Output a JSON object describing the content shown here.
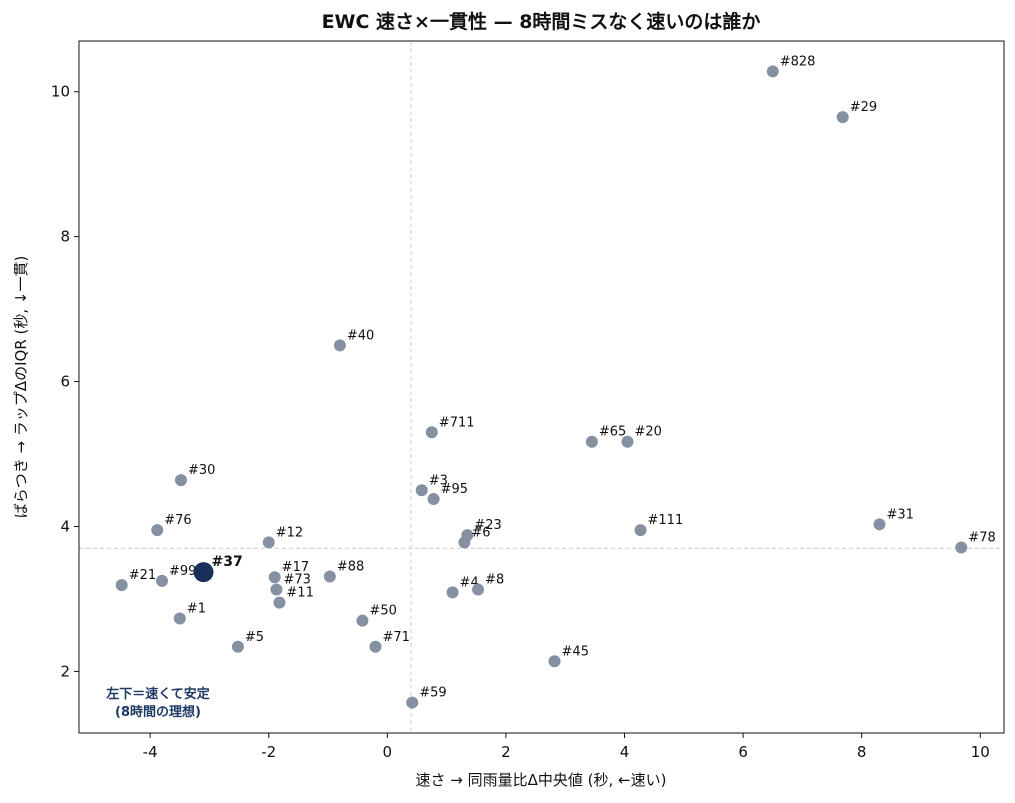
{
  "chart_data": {
    "type": "scatter",
    "title": "EWC 速さ×一貫性 — 8時間ミスなく速いのは誰か",
    "xlabel": "速さ → 同雨量比Δ中央値 (秒, ←速い)",
    "ylabel": "ばらつき → ラップΔのIQR (秒, ↓一貫)",
    "xlim": [
      -5.2,
      10.4
    ],
    "ylim": [
      1.15,
      10.7
    ],
    "xticks": [
      -4,
      -2,
      0,
      2,
      4,
      6,
      8,
      10
    ],
    "yticks": [
      2,
      4,
      6,
      8,
      10
    ],
    "xtick_labels": [
      "-4",
      "-2",
      "0",
      "2",
      "4",
      "6",
      "8",
      "10"
    ],
    "ytick_labels": [
      "2",
      "4",
      "6",
      "8",
      "10"
    ],
    "reference_lines": {
      "x": 0.4,
      "y": 3.7
    },
    "grid": false,
    "colors": {
      "point": "#8591a1",
      "highlight": "#1a2f5a",
      "reference": "#cccccc",
      "note": "#1f3a63"
    },
    "annotation": [
      "左下＝速くて安定",
      "(8時間の理想)"
    ],
    "points": [
      {
        "label": "#828",
        "x": 6.5,
        "y": 10.28
      },
      {
        "label": "#29",
        "x": 7.68,
        "y": 9.65
      },
      {
        "label": "#40",
        "x": -0.8,
        "y": 6.5
      },
      {
        "label": "#711",
        "x": 0.75,
        "y": 5.3
      },
      {
        "label": "#65",
        "x": 3.45,
        "y": 5.17
      },
      {
        "label": "#20",
        "x": 4.05,
        "y": 5.17
      },
      {
        "label": "#30",
        "x": -3.48,
        "y": 4.64
      },
      {
        "label": "#3",
        "x": 0.58,
        "y": 4.5
      },
      {
        "label": "#95",
        "x": 0.78,
        "y": 4.38
      },
      {
        "label": "#31",
        "x": 8.3,
        "y": 4.03
      },
      {
        "label": "#76",
        "x": -3.88,
        "y": 3.95
      },
      {
        "label": "#111",
        "x": 4.27,
        "y": 3.95
      },
      {
        "label": "#23",
        "x": 1.35,
        "y": 3.88
      },
      {
        "label": "#12",
        "x": -2.0,
        "y": 3.78
      },
      {
        "label": "#6",
        "x": 1.3,
        "y": 3.78
      },
      {
        "label": "#78",
        "x": 9.68,
        "y": 3.71
      },
      {
        "label": "#37",
        "x": -3.1,
        "y": 3.37,
        "highlight": true
      },
      {
        "label": "#88",
        "x": -0.97,
        "y": 3.31
      },
      {
        "label": "#17",
        "x": -1.9,
        "y": 3.3
      },
      {
        "label": "#99",
        "x": -3.8,
        "y": 3.25
      },
      {
        "label": "#21",
        "x": -4.48,
        "y": 3.19
      },
      {
        "label": "#73",
        "x": -1.87,
        "y": 3.13
      },
      {
        "label": "#4",
        "x": 1.1,
        "y": 3.09
      },
      {
        "label": "#8",
        "x": 1.53,
        "y": 3.13
      },
      {
        "label": "#11",
        "x": -1.82,
        "y": 2.95
      },
      {
        "label": "#1",
        "x": -3.5,
        "y": 2.73
      },
      {
        "label": "#50",
        "x": -0.42,
        "y": 2.7
      },
      {
        "label": "#5",
        "x": -2.52,
        "y": 2.34
      },
      {
        "label": "#71",
        "x": -0.2,
        "y": 2.34
      },
      {
        "label": "#45",
        "x": 2.82,
        "y": 2.14
      },
      {
        "label": "#59",
        "x": 0.42,
        "y": 1.57
      }
    ]
  }
}
